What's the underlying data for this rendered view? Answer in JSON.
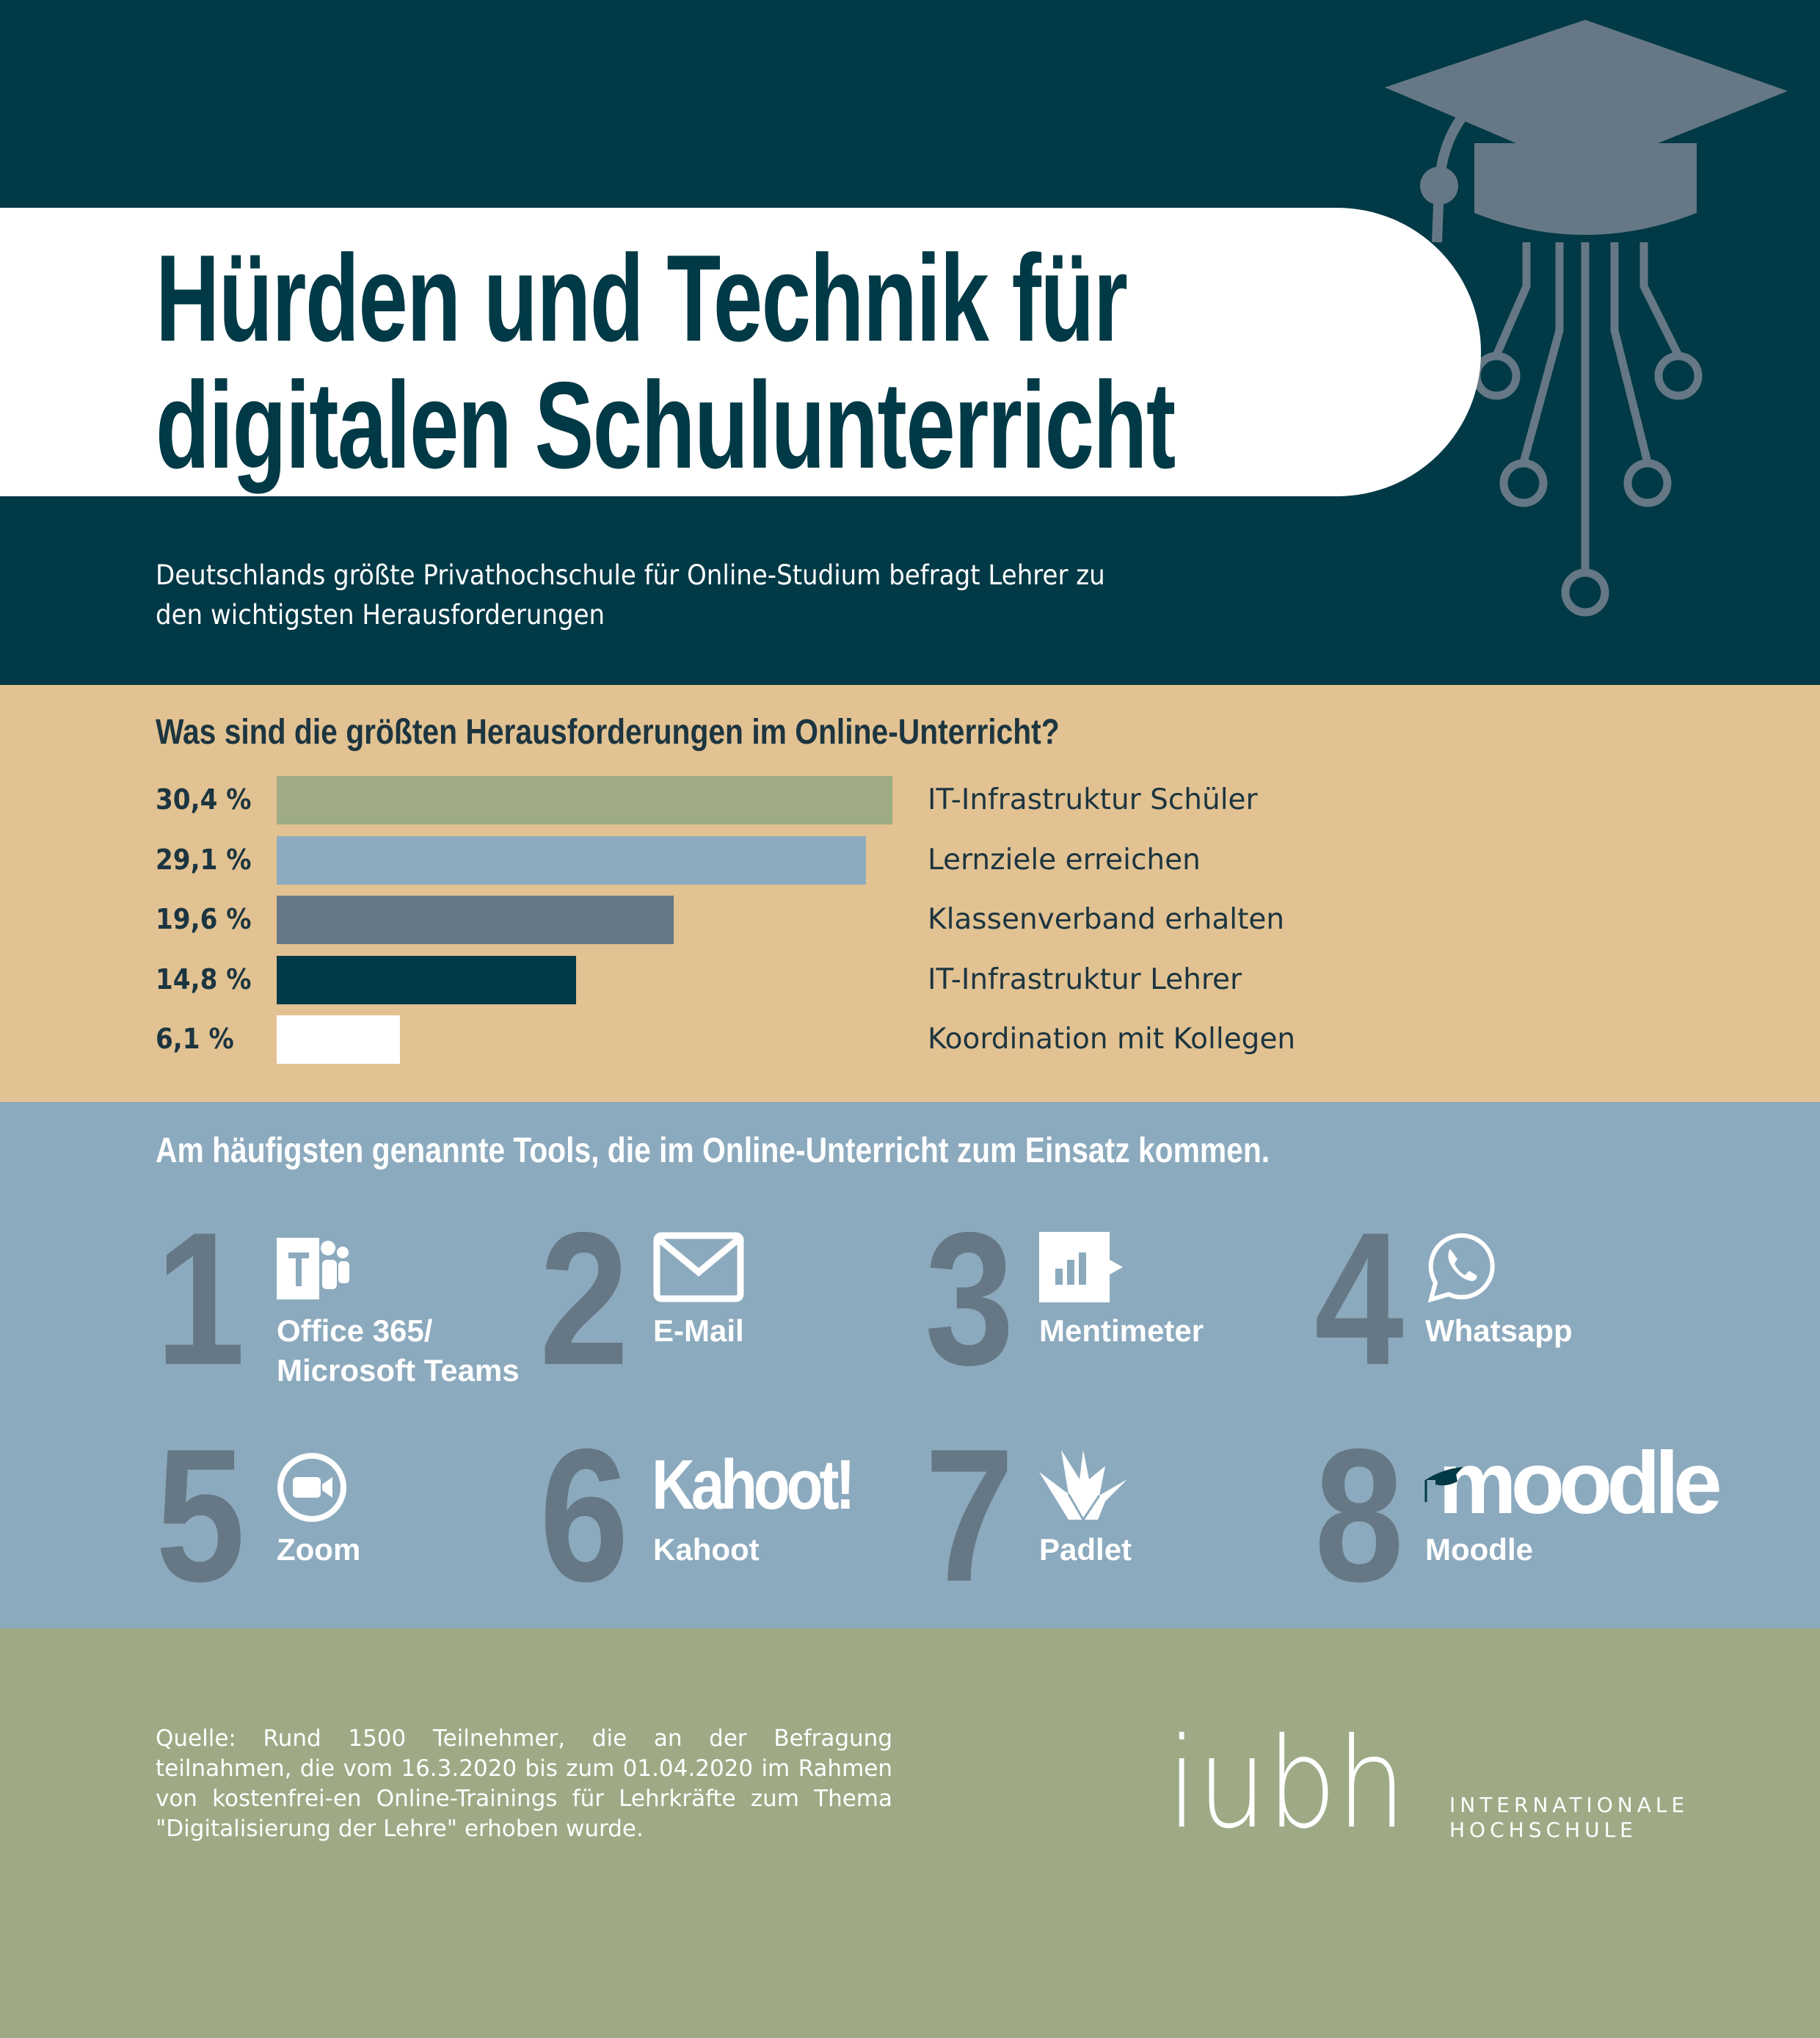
{
  "header": {
    "title_line1": "Hürden und Technik für",
    "title_line2": "digitalen Schulunterricht",
    "subtitle_line1": "Deutschlands größte Privathochschule für Online-Studium befragt Lehrer zu",
    "subtitle_line2": "den wichtigsten Herausforderungen"
  },
  "chart_data": {
    "type": "bar",
    "title": "Was sind die größten Herausforderungen im Online-Unterricht?",
    "categories": [
      "IT-Infrastruktur Schüler",
      "Lernziele erreichen",
      "Klassenverband erhalten",
      "IT-Infrastruktur Lehrer",
      "Koordination mit Kollegen"
    ],
    "values": [
      30.4,
      29.1,
      19.6,
      14.8,
      6.1
    ],
    "labels": [
      "30,4 %",
      "29,1 %",
      "19,6 %",
      "14,8 %",
      "6,1 %"
    ],
    "colors": [
      "#9eab84",
      "#8cabbf",
      "#667885",
      "#013946",
      "#ffffff"
    ],
    "unit": "%"
  },
  "tools": {
    "heading": "Am häufigsten genannte Tools, die im Online-Unterricht zum Einsatz kommen.",
    "items": [
      {
        "rank": "1",
        "label": "Office 365/",
        "label2": "Microsoft Teams",
        "icon": "teams-icon"
      },
      {
        "rank": "2",
        "label": "E-Mail",
        "icon": "mail-icon"
      },
      {
        "rank": "3",
        "label": "Mentimeter",
        "icon": "mentimeter-icon"
      },
      {
        "rank": "4",
        "label": "Whatsapp",
        "icon": "whatsapp-icon"
      },
      {
        "rank": "5",
        "label": "Zoom",
        "icon": "zoom-icon"
      },
      {
        "rank": "6",
        "label": "Kahoot",
        "icon": "kahoot-logo",
        "logo_text": "Kahoot!"
      },
      {
        "rank": "7",
        "label": "Padlet",
        "icon": "padlet-icon"
      },
      {
        "rank": "8",
        "label": "Moodle",
        "icon": "moodle-logo",
        "logo_text": "moodle"
      }
    ]
  },
  "footer": {
    "source": "Quelle: Rund 1500 Teilnehmer, die an der Befragung teilnahmen, die vom 16.3.2020 bis zum 01.04.2020 im Rahmen von kostenfrei-en Online-Trainings für Lehrkräfte zum Thema \"Digitalisierung der Lehre\" erhoben wurde.",
    "logo_text": "iubh",
    "logo_sub1": "INTERNATIONALE",
    "logo_sub2": "HOCHSCHULE"
  }
}
